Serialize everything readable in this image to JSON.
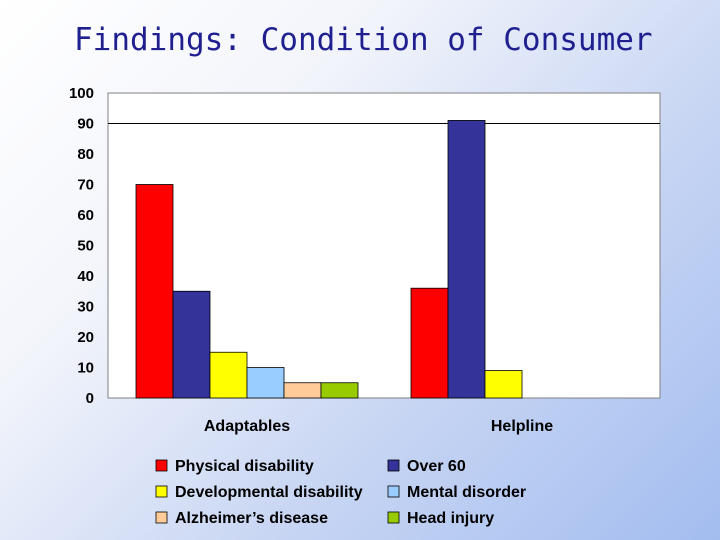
{
  "slide": {
    "title": "Findings: Condition of Consumer"
  },
  "chart_data": {
    "type": "bar",
    "title": "",
    "xlabel": "",
    "ylabel": "",
    "ylim": [
      0,
      100
    ],
    "yticks": [
      0,
      10,
      20,
      30,
      40,
      50,
      60,
      70,
      80,
      90,
      100
    ],
    "categories": [
      "Adaptables",
      "Helpline"
    ],
    "reference_line": 90,
    "legend_position": "bottom",
    "series": [
      {
        "name": "Physical disability",
        "color": "#ff0000",
        "values": [
          70,
          36
        ]
      },
      {
        "name": "Over 60",
        "color": "#333399",
        "values": [
          35,
          91
        ]
      },
      {
        "name": "Developmental disability",
        "color": "#ffff00",
        "values": [
          15,
          9
        ]
      },
      {
        "name": "Mental disorder",
        "color": "#99ccff",
        "values": [
          10,
          null
        ]
      },
      {
        "name": "Alzheimer’s disease",
        "color": "#ffcc99",
        "values": [
          5,
          null
        ]
      },
      {
        "name": "Head injury",
        "color": "#99cc00",
        "values": [
          5,
          null
        ]
      }
    ]
  }
}
